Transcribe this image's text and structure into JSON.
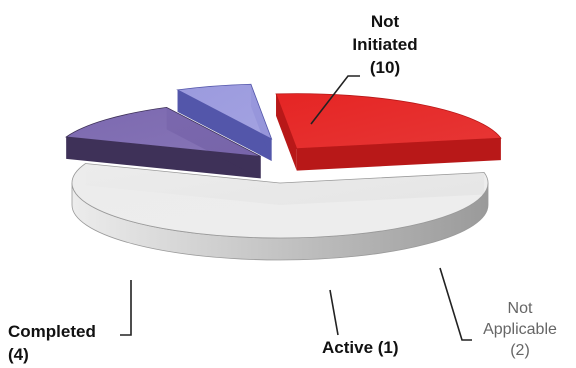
{
  "chart_data": {
    "type": "pie",
    "style": "3d-exploded",
    "slices": [
      {
        "label_lines": [
          "Not",
          "Initiated",
          "(10)"
        ],
        "value": 10,
        "color": "#ececec",
        "side": "#9a9a9a",
        "exploded": false,
        "label_style": "bold"
      },
      {
        "label_lines": [
          "Not",
          "Applicable",
          "(2)"
        ],
        "value": 2,
        "color": "#7c69b0",
        "side": "#3e3158",
        "exploded": true,
        "label_style": "light"
      },
      {
        "label_lines": [
          "Active (1)"
        ],
        "value": 1,
        "color": "#9b9ade",
        "side": "#5356aa",
        "exploded": true,
        "label_style": "bold"
      },
      {
        "label_lines": [
          "Completed",
          "(4)"
        ],
        "value": 4,
        "color": "#e52524",
        "side": "#b81818",
        "exploded": true,
        "label_style": "bold"
      }
    ],
    "legend": "none"
  }
}
